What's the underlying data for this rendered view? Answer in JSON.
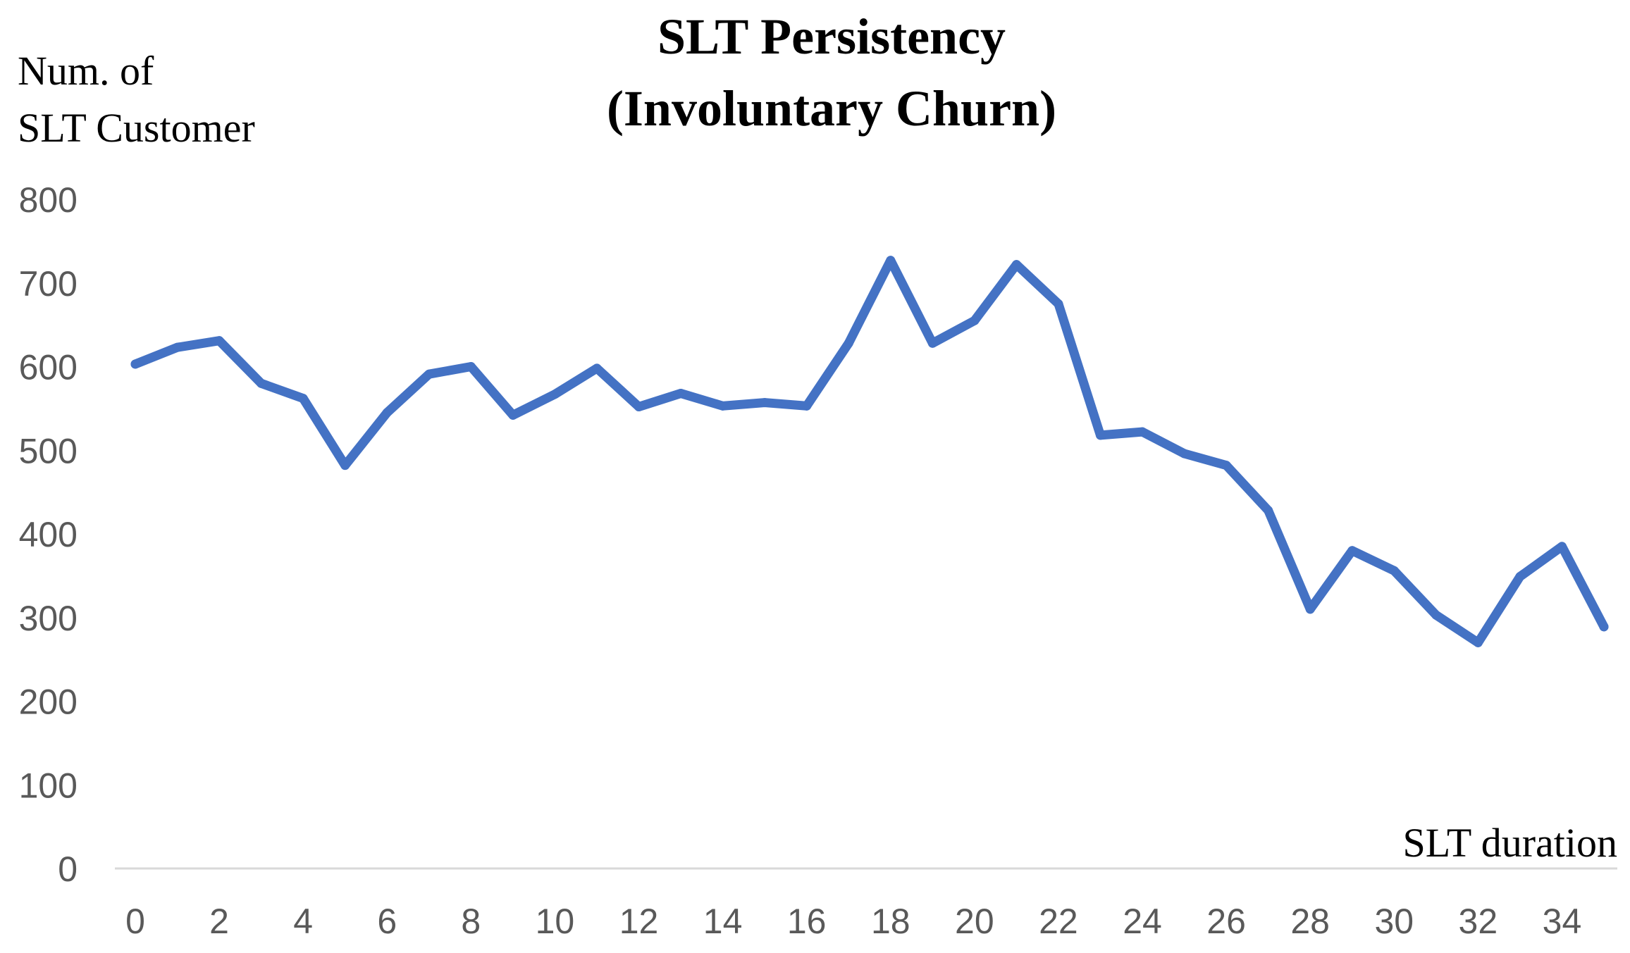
{
  "chart_data": {
    "type": "line",
    "title": "SLT Persistency",
    "subtitle": "(Involuntary Churn)",
    "ylabel_lines": [
      "Num. of",
      "SLT Customer"
    ],
    "xlabel": "SLT duration",
    "ylim": [
      0,
      800
    ],
    "yticks": [
      0,
      100,
      200,
      300,
      400,
      500,
      600,
      700,
      800
    ],
    "xlim": [
      0,
      35
    ],
    "xticks": [
      0,
      2,
      4,
      6,
      8,
      10,
      12,
      14,
      16,
      18,
      20,
      22,
      24,
      26,
      28,
      30,
      32,
      34
    ],
    "grid": false,
    "legend": "none",
    "line_color": "#4472C4",
    "axis_color": "#D9D9D9",
    "x": [
      0,
      1,
      2,
      3,
      4,
      5,
      6,
      7,
      8,
      9,
      10,
      11,
      12,
      13,
      14,
      15,
      16,
      17,
      18,
      19,
      20,
      21,
      22,
      23,
      24,
      25,
      26,
      27,
      28,
      29,
      30,
      31,
      32,
      33,
      34,
      35
    ],
    "series": [
      {
        "values": [
          603,
          623,
          631,
          580,
          562,
          482,
          545,
          591,
          600,
          542,
          567,
          598,
          552,
          568,
          553,
          557,
          553,
          628,
          727,
          628,
          655,
          722,
          675,
          518,
          522,
          496,
          482,
          428,
          310,
          380,
          356,
          303,
          270,
          349,
          385,
          289
        ]
      }
    ]
  }
}
